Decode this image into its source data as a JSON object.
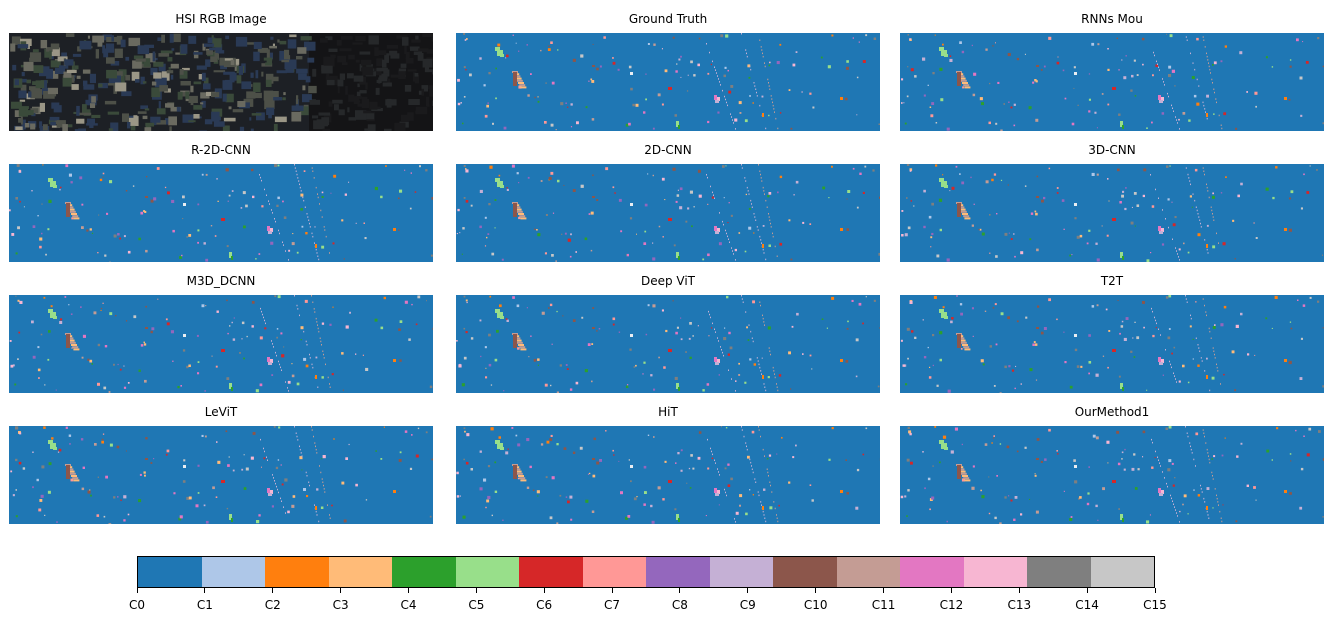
{
  "panels": [
    {
      "title": "HSI RGB Image",
      "kind": "rgb"
    },
    {
      "title": "Ground Truth",
      "kind": "map"
    },
    {
      "title": "RNNs Mou",
      "kind": "map"
    },
    {
      "title": "R-2D-CNN",
      "kind": "map"
    },
    {
      "title": "2D-CNN",
      "kind": "map"
    },
    {
      "title": "3D-CNN",
      "kind": "map"
    },
    {
      "title": "M3D_DCNN",
      "kind": "map"
    },
    {
      "title": "Deep ViT",
      "kind": "map"
    },
    {
      "title": "T2T",
      "kind": "map"
    },
    {
      "title": "LeViT",
      "kind": "map"
    },
    {
      "title": "HiT",
      "kind": "map"
    },
    {
      "title": "OurMethod1",
      "kind": "map"
    }
  ],
  "colorbar": {
    "labels": [
      "C0",
      "C1",
      "C2",
      "C3",
      "C4",
      "C5",
      "C6",
      "C7",
      "C8",
      "C9",
      "C10",
      "C11",
      "C12",
      "C13",
      "C14",
      "C15"
    ],
    "colors": [
      "#1f77b4",
      "#aec7e8",
      "#ff7f0e",
      "#ffbb78",
      "#2ca02c",
      "#98df8a",
      "#d62728",
      "#ff9896",
      "#9467bd",
      "#c5b0d5",
      "#8c564b",
      "#c49c94",
      "#e377c2",
      "#f7b6d2",
      "#7f7f7f",
      "#c7c7c7"
    ]
  }
}
